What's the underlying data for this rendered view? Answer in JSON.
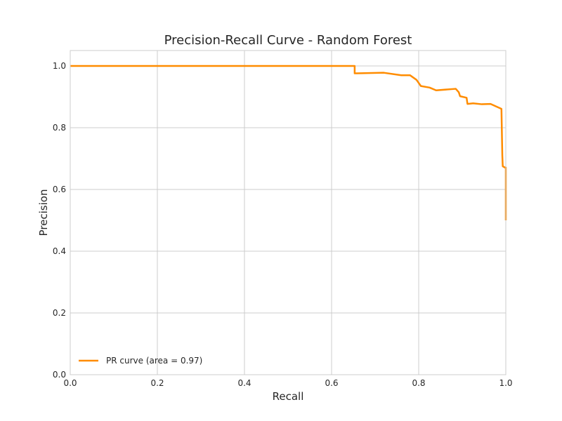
{
  "chart_data": {
    "type": "line",
    "title": "Precision-Recall Curve - Random Forest",
    "xlabel": "Recall",
    "ylabel": "Precision",
    "xlim": [
      0.0,
      1.0
    ],
    "ylim": [
      0.0,
      1.05
    ],
    "xticks": [
      0.0,
      0.2,
      0.4,
      0.6,
      0.8,
      1.0
    ],
    "xtick_labels": [
      "0.0",
      "0.2",
      "0.4",
      "0.6",
      "0.8",
      "1.0"
    ],
    "yticks": [
      0.0,
      0.2,
      0.4,
      0.6,
      0.8,
      1.0
    ],
    "ytick_labels": [
      "0.0",
      "0.2",
      "0.4",
      "0.6",
      "0.8",
      "1.0"
    ],
    "grid": true,
    "legend_position": "lower-left",
    "series": [
      {
        "name": "PR curve (area = 0.97)",
        "color": "#ff8c00",
        "x": [
          0.0,
          0.653,
          0.653,
          0.72,
          0.76,
          0.78,
          0.795,
          0.805,
          0.825,
          0.84,
          0.885,
          0.892,
          0.895,
          0.91,
          0.912,
          0.925,
          0.945,
          0.965,
          0.99,
          0.992,
          0.993,
          0.998,
          1.0,
          1.0
        ],
        "y": [
          1.0,
          1.0,
          0.976,
          0.978,
          0.97,
          0.97,
          0.955,
          0.935,
          0.93,
          0.921,
          0.926,
          0.915,
          0.902,
          0.897,
          0.877,
          0.879,
          0.876,
          0.877,
          0.861,
          0.71,
          0.675,
          0.671,
          0.671,
          0.5
        ]
      }
    ]
  }
}
